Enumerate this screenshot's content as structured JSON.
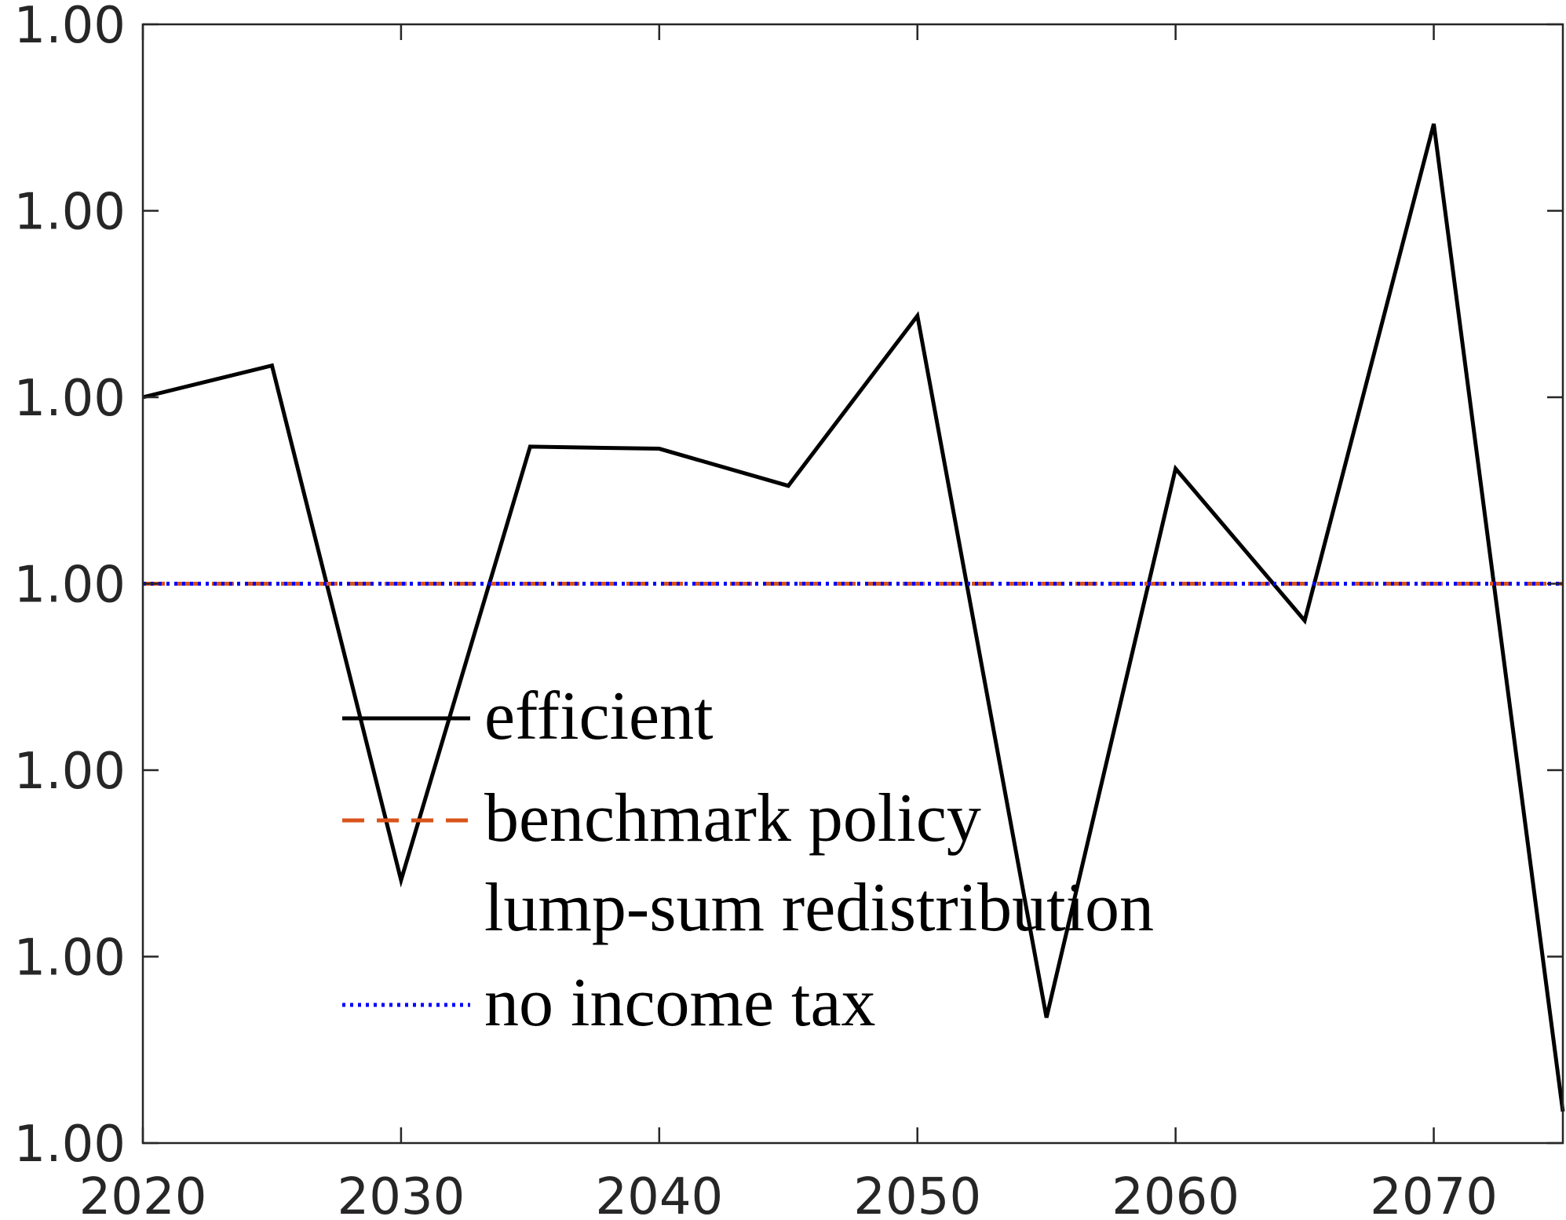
{
  "chart_data": {
    "type": "line",
    "x": [
      2020,
      2025,
      2030,
      2035,
      2040,
      2045,
      2050,
      2055,
      2060,
      2065,
      2070,
      2075
    ],
    "series": [
      {
        "name": "efficient",
        "color": "#000000",
        "linestyle": "solid",
        "values": [
          1.0001,
          1.000117,
          0.999841,
          1.0000735,
          1.0000724,
          1.0000525,
          1.0001437,
          0.9997673,
          1.0000617,
          0.9999802,
          1.0002466,
          0.9997169
        ]
      },
      {
        "name": "benchmark policy",
        "color": "#d95319",
        "linestyle": "dashed",
        "values": [
          1,
          1,
          1,
          1,
          1,
          1,
          1,
          1,
          1,
          1,
          1,
          1
        ]
      },
      {
        "name": "lump-sum redistribution",
        "color": "#edb120",
        "linestyle": "none",
        "values": [
          1,
          1,
          1,
          1,
          1,
          1,
          1,
          1,
          1,
          1,
          1,
          1
        ]
      },
      {
        "name": "no income tax",
        "color": "#0000ff",
        "linestyle": "dotted",
        "values": [
          1,
          1,
          1,
          1,
          1,
          1,
          1,
          1,
          1,
          1,
          1,
          1
        ]
      }
    ],
    "xlim": [
      2020,
      2075
    ],
    "xticks": [
      2020,
      2030,
      2040,
      2050,
      2060,
      2070
    ],
    "ylim": [
      0.9997,
      1.0003
    ],
    "yticks": [
      {
        "value": 0.9997,
        "label": "1.00"
      },
      {
        "value": 0.9998,
        "label": "1.00"
      },
      {
        "value": 0.9999,
        "label": "1.00"
      },
      {
        "value": 1.0,
        "label": "1.00"
      },
      {
        "value": 1.0001,
        "label": "1.00"
      },
      {
        "value": 1.0002,
        "label": "1.00"
      },
      {
        "value": 1.0003,
        "label": "1.00"
      }
    ],
    "grid": false,
    "legend": "center"
  }
}
